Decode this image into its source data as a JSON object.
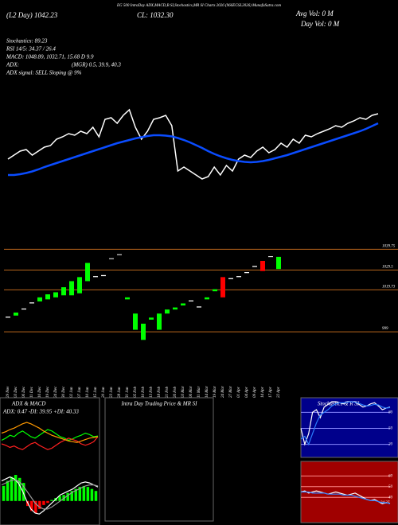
{
  "chart_data": [
    {
      "type": "line",
      "title": "EG 500 IntraDay ADX,MACD,B SI,Stochastics,MR SI Charts 2026 (966EGSL2026) MunafaSutra.com",
      "annotations": [
        "(L2 Day) 1042.23",
        "CL: 1032.30",
        "Avg Vol: 0 M",
        "Day Vol: 0 M",
        "Stochastics: 89.23",
        "RSI 14/5: 34.37 / 26.4",
        "MACD: 1048.89, 1032.71, 15.68 D 9.9",
        "ADX:",
        "(MGR) 0.5, 39.9, 40.3",
        "ADX signal: SELL Sloping @ 9%"
      ],
      "ylim": [
        1010,
        1070
      ],
      "series": [
        {
          "color": "#ffffff",
          "values": [
            1032,
            1034,
            1036,
            1036.8,
            1034,
            1036,
            1038,
            1038.8,
            1042,
            1043.2,
            1044.8,
            1044,
            1046,
            1044.8,
            1048,
            1043.2,
            1052,
            1052.8,
            1050,
            1054,
            1056.8,
            1048,
            1042,
            1046,
            1052,
            1052.8,
            1054,
            1048.8,
            1026,
            1028,
            1026,
            1024,
            1022,
            1023.2,
            1028,
            1024,
            1028.8,
            1026,
            1032,
            1034,
            1032.8,
            1036,
            1038,
            1035.2,
            1036.8,
            1040,
            1038,
            1042,
            1040,
            1044,
            1043.2,
            1044.8,
            1046,
            1047.2,
            1048.8,
            1048,
            1050,
            1051.2,
            1052.8,
            1052,
            1054,
            1054.8
          ]
        },
        {
          "color": "#0a4cff",
          "values": [
            1024,
            1024,
            1024.4,
            1025,
            1025.8,
            1026.8,
            1028,
            1029,
            1030,
            1031,
            1032,
            1033,
            1034,
            1035,
            1036,
            1037,
            1038,
            1039,
            1040,
            1040.8,
            1041.6,
            1042.4,
            1043,
            1043.6,
            1044,
            1044,
            1043.8,
            1043.4,
            1042.6,
            1041.6,
            1040.4,
            1039,
            1037.6,
            1036,
            1034.6,
            1033.4,
            1032.4,
            1031.6,
            1031,
            1030.6,
            1030.4,
            1030.6,
            1031,
            1031.6,
            1032.4,
            1033.2,
            1034,
            1035,
            1036,
            1037,
            1038,
            1039,
            1040,
            1041,
            1042,
            1043,
            1044,
            1045,
            1046,
            1047.2,
            1048.6,
            1050
          ]
        }
      ]
    },
    {
      "type": "candlestick",
      "categories": [
        "29 Nov",
        "03 Dec",
        "06 Dec",
        "11 Dec",
        "16 Dec",
        "19 Dec",
        "24 Dec",
        "30 Dec",
        "02 Jan",
        "07 Jan",
        "10 Jan",
        "15 Jan",
        "20 Jan",
        "23 Jan",
        "28 Jan",
        "31 Jan",
        "05 Feb",
        "10 Feb",
        "13 Feb",
        "18 Feb",
        "21 Feb",
        "26 Feb",
        "03 Mar",
        "06 Mar",
        "11 Mar",
        "14 Mar",
        "19 Mar",
        "24 Mar",
        "27 Mar",
        "01 Apr",
        "04 Apr",
        "09 Apr",
        "14 Apr",
        "17 Apr",
        "22 Apr"
      ],
      "open": [
        1006,
        1007,
        1010,
        1013,
        1014,
        1015,
        1016,
        1017,
        1017,
        1018,
        1024,
        1026,
        1026.5,
        1035,
        1037,
        1015,
        1000,
        995,
        1005,
        1000,
        1008,
        1010,
        1012,
        1014,
        1011,
        1015,
        1019,
        1026,
        1025,
        1026,
        1028,
        1031,
        1034,
        1036,
        1030
      ],
      "close": [
        1006.5,
        1008.5,
        1010.5,
        1013.5,
        1016,
        1017.5,
        1018.5,
        1021,
        1024,
        1026,
        1033,
        1026.5,
        1027,
        1035.3,
        1037.3,
        1016,
        1008,
        1003,
        1006,
        1008,
        1010,
        1011,
        1013,
        1014.5,
        1011.5,
        1016,
        1020,
        1016,
        1025.5,
        1026.5,
        1028.5,
        1031.5,
        1029,
        1036.3,
        1036
      ],
      "up_color": "#00ff00",
      "down_color": "#ff0000",
      "flat_color": "#ffffff",
      "ylim": [
        990,
        1045
      ],
      "yticks": [
        1039.75,
        1029.5,
        1019.73,
        999
      ],
      "grid": true,
      "grid_color": "#b8651c"
    },
    {
      "type": "line",
      "title": "ADX  & MACD",
      "annotations": [
        "ADX: 0.47 -DI: 39.95 +DI: 40.33"
      ],
      "ylim": [
        0,
        70
      ],
      "series": [
        {
          "color": "#00ff00",
          "values": [
            35,
            38,
            42,
            40,
            45,
            48,
            44,
            40,
            38,
            42,
            46,
            50,
            48,
            44,
            40,
            38,
            35,
            37,
            40,
            42,
            45,
            43,
            40,
            41
          ]
        },
        {
          "color": "#ff2020",
          "values": [
            30,
            28,
            25,
            27,
            24,
            22,
            26,
            30,
            32,
            28,
            25,
            22,
            24,
            28,
            32,
            35,
            38,
            36,
            34,
            30,
            28,
            30,
            33,
            40
          ]
        },
        {
          "color": "#ff9900",
          "values": [
            45,
            47,
            50,
            52,
            55,
            58,
            60,
            58,
            55,
            52,
            48,
            45,
            42,
            40,
            38,
            36,
            34,
            33,
            32,
            34,
            36,
            38,
            39,
            40
          ]
        }
      ]
    },
    {
      "type": "macd",
      "values": [
        1.5,
        2,
        2.4,
        2.6,
        2.3,
        1.8,
        -0.5,
        -1,
        -1.2,
        -0.8,
        -0.4,
        -0.2,
        0.1,
        0.3,
        0.5,
        0.6,
        0.8,
        1,
        1.2,
        1.4,
        1.5,
        1.4,
        1.2,
        1
      ],
      "color": "#00ff00",
      "negative_color": "#ff0000",
      "ylim": [
        -2,
        3
      ],
      "series": [
        {
          "color": "#ffffff",
          "values": [
            2,
            2.2,
            2.4,
            2.2,
            1.8,
            1,
            0,
            -0.8,
            -1.2,
            -1.3,
            -1,
            -0.6,
            -0.2,
            0.2,
            0.6,
            0.8,
            1,
            1.2,
            1.5,
            1.8,
            1.9,
            1.8,
            1.6,
            1.4
          ]
        },
        {
          "color": "#999999",
          "values": [
            1.6,
            1.8,
            2,
            2.1,
            2,
            1.6,
            1,
            0.4,
            -0.2,
            -0.6,
            -0.8,
            -0.8,
            -0.6,
            -0.3,
            0,
            0.3,
            0.6,
            0.9,
            1.1,
            1.3,
            1.5,
            1.6,
            1.6,
            1.5
          ]
        }
      ]
    },
    {
      "type": "line",
      "title": "Intra Day Trading Price  & MR                    SI",
      "series": []
    },
    {
      "type": "line",
      "title": "Stochastics & R          SI",
      "background": "#00008b",
      "ylim": [
        0,
        100
      ],
      "yticks": [
        80,
        50,
        20
      ],
      "grid": true,
      "grid_color": "#8888ff",
      "series": [
        {
          "color": "#ffffff",
          "values": [
            50,
            20,
            40,
            80,
            85,
            70,
            90,
            95,
            100,
            100,
            98,
            96,
            100,
            100,
            100,
            95,
            90,
            92,
            96,
            98,
            92,
            85,
            88,
            90
          ]
        },
        {
          "color": "#2a7fff",
          "values": [
            30,
            35,
            20,
            40,
            60,
            75,
            80,
            85,
            92,
            96,
            98,
            98,
            99,
            100,
            99,
            97,
            94,
            92,
            93,
            95,
            94,
            90,
            88,
            89
          ]
        }
      ]
    },
    {
      "type": "line",
      "background": "#a00000",
      "annotations": [
        "34.37"
      ],
      "ylim": [
        20,
        70
      ],
      "yticks": [
        60,
        50,
        40
      ],
      "grid": true,
      "grid_color": "#ff8888",
      "series": [
        {
          "color": "#ffffff",
          "values": [
            45,
            46,
            44,
            45,
            46,
            45,
            44,
            43,
            44,
            45,
            44,
            43,
            42,
            43,
            44,
            42,
            40,
            38,
            37,
            38,
            36,
            34,
            35,
            34.37
          ]
        },
        {
          "color": "#2a7fff",
          "values": [
            45,
            45,
            45,
            44,
            44,
            44,
            44,
            43,
            43,
            43,
            43,
            42,
            42,
            42,
            41,
            40,
            39,
            38,
            37,
            37,
            36,
            35,
            35,
            34
          ]
        }
      ]
    }
  ]
}
